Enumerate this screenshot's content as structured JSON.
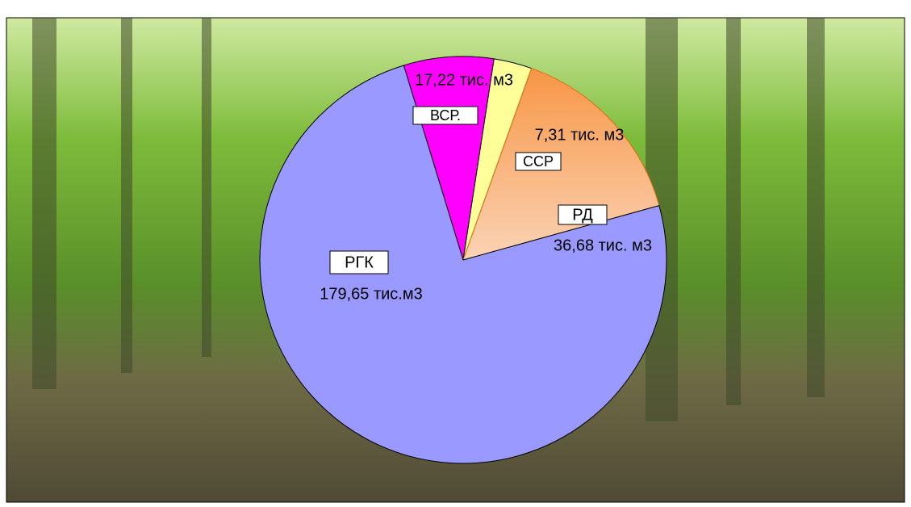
{
  "chart_data": {
    "type": "pie",
    "categories": [
      "ВСР.",
      "ССР",
      "РД",
      "РГК"
    ],
    "values": [
      17.22,
      7.31,
      36.68,
      179.65
    ],
    "value_labels": [
      "17,22 тис. м3",
      "7,31 тис. м3",
      "36,68 тис. м3",
      "179,65 тис.м3"
    ],
    "colors": [
      "#ff00ff",
      "#ffff99",
      "#f79646",
      "#9999ff"
    ]
  }
}
